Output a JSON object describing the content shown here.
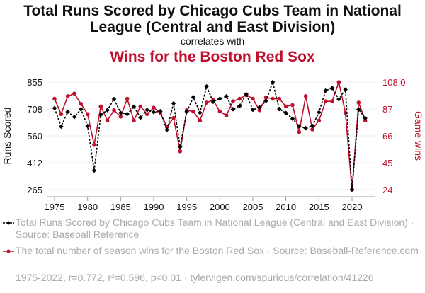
{
  "chart_data": {
    "type": "line",
    "title": "Total Runs Scored by Chicago Cubs Team in National League (Central and East Division)",
    "subtitle": "correlates with",
    "title2": "Wins for the Boston Red Sox",
    "ylabel": "Runs Scored",
    "y2label": "Game wins",
    "ylim": [
      265,
      855
    ],
    "y2lim": [
      24,
      108
    ],
    "yticks": [
      "265",
      "412",
      "560",
      "708",
      "855"
    ],
    "y2ticks": [
      "24",
      "45",
      "66",
      "87",
      "108.0"
    ],
    "xticks": [
      "1975",
      "1980",
      "1985",
      "1990",
      "1995",
      "2000",
      "2005",
      "2010",
      "2015",
      "2020"
    ],
    "x": [
      1975,
      1976,
      1977,
      1978,
      1979,
      1980,
      1981,
      1982,
      1983,
      1984,
      1985,
      1986,
      1987,
      1988,
      1989,
      1990,
      1991,
      1992,
      1993,
      1994,
      1995,
      1996,
      1997,
      1998,
      1999,
      2000,
      2001,
      2002,
      2003,
      2004,
      2005,
      2006,
      2007,
      2008,
      2009,
      2010,
      2011,
      2012,
      2013,
      2014,
      2015,
      2016,
      2017,
      2018,
      2019,
      2020,
      2021,
      2022
    ],
    "series": [
      {
        "name": "Total Runs Scored by Chicago Cubs Team in National League (Central and East Division) · Source: Baseball Reference",
        "color": "#000000",
        "axis": "left",
        "values": [
          712,
          611,
          692,
          664,
          706,
          614,
          370,
          676,
          701,
          762,
          686,
          680,
          720,
          660,
          702,
          690,
          695,
          593,
          738,
          500,
          693,
          772,
          687,
          831,
          747,
          764,
          777,
          706,
          724,
          789,
          703,
          716,
          752,
          855,
          707,
          685,
          654,
          613,
          602,
          614,
          689,
          808,
          822,
          761,
          814,
          265,
          705,
          657
        ]
      },
      {
        "name": "The total number of season wins for the Boston Red Sox · Source: Baseball-Reference.com",
        "color": "#c0102e",
        "axis": "right",
        "values": [
          95,
          83,
          97,
          99,
          91,
          83,
          59,
          89,
          78,
          86,
          81,
          95,
          78,
          89,
          83,
          88,
          84,
          73,
          80,
          54,
          86,
          85,
          78,
          92,
          94,
          85,
          82,
          93,
          95,
          98,
          95,
          86,
          96,
          95,
          95,
          89,
          90,
          69,
          97,
          71,
          78,
          93,
          93,
          108,
          84,
          24,
          92,
          78
        ]
      }
    ],
    "footer": "1975-2022, r=0.772, r²=0.596, p<0.01 · tylervigen.com/spurious/correlation/41226"
  }
}
